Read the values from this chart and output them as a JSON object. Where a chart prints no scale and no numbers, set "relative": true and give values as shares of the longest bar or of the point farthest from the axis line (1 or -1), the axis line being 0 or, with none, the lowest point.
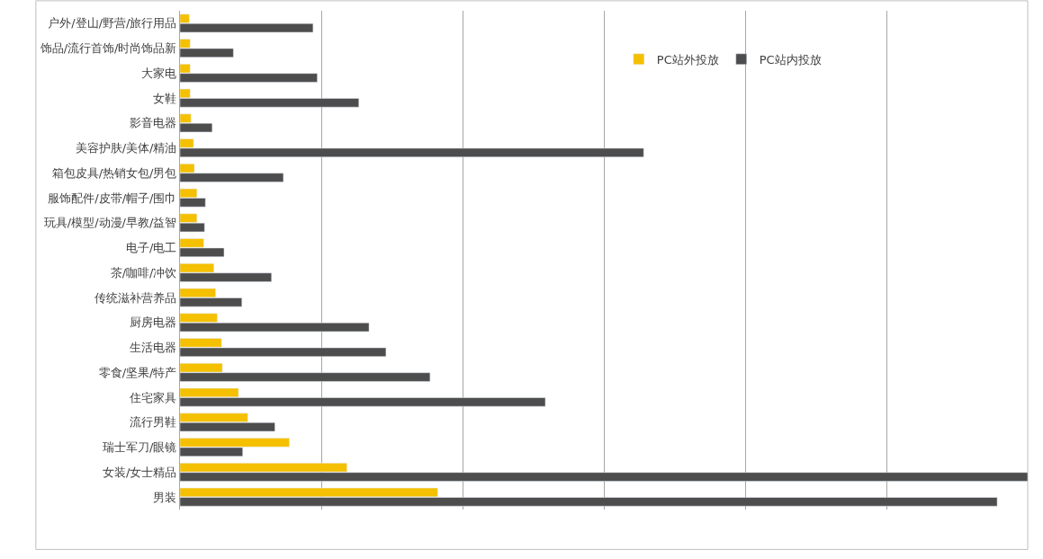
{
  "chart_data": {
    "type": "bar",
    "orientation": "horizontal",
    "relative": true,
    "grid": "x",
    "legend": "top right",
    "categories": [
      "户外/登山/野营/旅行用品",
      "饰品/流行首饰/时尚饰品新",
      "大家电",
      "女鞋",
      "影音电器",
      "美容护肤/美体/精油",
      "箱包皮具/热销女包/男包",
      "服饰配件/皮带/帽子/围巾",
      "玩具/模型/动漫/早教/益智",
      "电子/电工",
      "茶/咖啡/冲饮",
      "传统滋补营养品",
      "厨房电器",
      "生活电器",
      "零食/坚果/特产",
      "住宅家具",
      "流行男鞋",
      "瑞士军刀/眼镜",
      "女装/女士精品",
      "男装"
    ],
    "series": [
      {
        "name": "PC站外投放",
        "color": "#f5c000",
        "values": [
          0.011,
          0.012,
          0.012,
          0.012,
          0.013,
          0.016,
          0.017,
          0.02,
          0.02,
          0.028,
          0.04,
          0.042,
          0.044,
          0.049,
          0.05,
          0.069,
          0.08,
          0.129,
          0.197,
          0.304
        ]
      },
      {
        "name": "PC站内投放",
        "color": "#4d4d4d",
        "values": [
          0.157,
          0.063,
          0.162,
          0.211,
          0.038,
          0.547,
          0.122,
          0.03,
          0.029,
          0.052,
          0.108,
          0.073,
          0.223,
          0.243,
          0.295,
          0.431,
          0.112,
          0.074,
          1.0,
          0.964
        ]
      }
    ]
  }
}
